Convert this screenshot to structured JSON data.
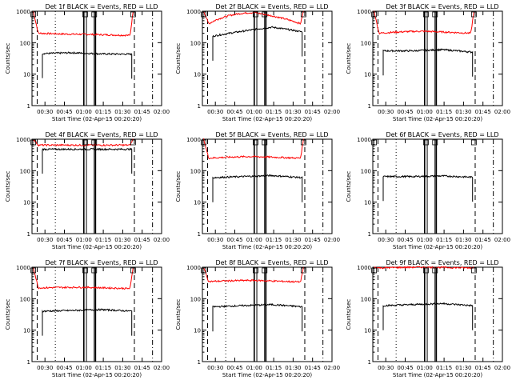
{
  "chart_data": [
    {
      "type": "line",
      "title": "Det 1f BLACK = Events, RED = LLD",
      "xlabel": "Start Time (02-Apr-15 00:20:20)",
      "ylabel": "Counts/sec",
      "yscale": "log",
      "ylim": [
        1,
        1000
      ],
      "xlim": [
        "00:20",
        "02:00"
      ],
      "series": [
        {
          "color": "#ff0000",
          "level": [
            1000,
            200,
            185,
            170
          ],
          "start": "00:21",
          "end": "01:38"
        },
        {
          "color": "#000000",
          "level": [
            45,
            48,
            44,
            43
          ],
          "start": "00:28",
          "end": "01:37"
        }
      ]
    },
    {
      "type": "line",
      "title": "Det 2f BLACK = Events, RED = LLD",
      "xlabel": "Start Time (02-Apr-15 00:20:20)",
      "ylabel": "Counts/sec",
      "yscale": "log",
      "ylim": [
        1,
        1000
      ],
      "xlim": [
        "00:20",
        "02:00"
      ],
      "series": [
        {
          "color": "#ff0000",
          "level": [
            1000,
            400,
            900,
            400
          ],
          "start": "00:21",
          "end": "01:38"
        },
        {
          "color": "#000000",
          "level": [
            160,
            230,
            310,
            220
          ],
          "start": "00:28",
          "end": "01:37"
        }
      ]
    },
    {
      "type": "line",
      "title": "Det 3f BLACK = Events, RED = LLD",
      "xlabel": "Start Time (02-Apr-15 00:20:20)",
      "ylabel": "Counts/sec",
      "yscale": "log",
      "ylim": [
        1,
        1000
      ],
      "xlim": [
        "00:20",
        "02:00"
      ],
      "series": [
        {
          "color": "#ff0000",
          "level": [
            1000,
            200,
            230,
            200
          ],
          "start": "00:21",
          "end": "01:38"
        },
        {
          "color": "#000000",
          "level": [
            55,
            55,
            60,
            50
          ],
          "start": "00:28",
          "end": "01:37"
        }
      ]
    },
    {
      "type": "line",
      "title": "Det 4f BLACK = Events, RED = LLD",
      "xlabel": "Start Time (02-Apr-15 00:20:20)",
      "ylabel": "Counts/sec",
      "yscale": "log",
      "ylim": [
        1,
        1000
      ],
      "xlim": [
        "00:20",
        "02:00"
      ],
      "series": [
        {
          "color": "#ff0000",
          "level": [
            1000,
            650,
            650,
            650
          ],
          "start": "00:21",
          "end": "01:38"
        },
        {
          "color": "#000000",
          "level": [
            480,
            480,
            480,
            480
          ],
          "start": "00:28",
          "end": "01:37"
        }
      ]
    },
    {
      "type": "line",
      "title": "Det 5f BLACK = Events, RED = LLD",
      "xlabel": "Start Time (02-Apr-15 00:20:20)",
      "ylabel": "Counts/sec",
      "yscale": "log",
      "ylim": [
        1,
        1000
      ],
      "xlim": [
        "00:20",
        "02:00"
      ],
      "series": [
        {
          "color": "#ff0000",
          "level": [
            1000,
            250,
            280,
            250
          ],
          "start": "00:21",
          "end": "01:38"
        },
        {
          "color": "#000000",
          "level": [
            60,
            65,
            70,
            60
          ],
          "start": "00:28",
          "end": "01:37"
        }
      ]
    },
    {
      "type": "line",
      "title": "Det 6f BLACK = Events, RED = LLD",
      "xlabel": "Start Time (02-Apr-15 00:20:20)",
      "ylabel": "Counts/sec",
      "yscale": "log",
      "ylim": [
        1,
        1000
      ],
      "xlim": [
        "00:20",
        "02:00"
      ],
      "series": [
        {
          "color": "#000000",
          "level": [
            65,
            65,
            68,
            62
          ],
          "start": "00:28",
          "end": "01:37"
        }
      ]
    },
    {
      "type": "line",
      "title": "Det 7f BLACK = Events, RED = LLD",
      "xlabel": "Start Time (02-Apr-15 00:20:20)",
      "ylabel": "Counts/sec",
      "yscale": "log",
      "ylim": [
        1,
        1000
      ],
      "xlim": [
        "00:20",
        "02:00"
      ],
      "series": [
        {
          "color": "#ff0000",
          "level": [
            1000,
            220,
            230,
            210
          ],
          "start": "00:21",
          "end": "01:38"
        },
        {
          "color": "#000000",
          "level": [
            40,
            42,
            45,
            40
          ],
          "start": "00:28",
          "end": "01:37"
        }
      ]
    },
    {
      "type": "line",
      "title": "Det 8f BLACK = Events, RED = LLD",
      "xlabel": "Start Time (02-Apr-15 00:20:20)",
      "ylabel": "Counts/sec",
      "yscale": "log",
      "ylim": [
        1,
        1000
      ],
      "xlim": [
        "00:20",
        "02:00"
      ],
      "series": [
        {
          "color": "#ff0000",
          "level": [
            1000,
            350,
            380,
            340
          ],
          "start": "00:21",
          "end": "01:38"
        },
        {
          "color": "#000000",
          "level": [
            55,
            60,
            65,
            55
          ],
          "start": "00:28",
          "end": "01:37"
        }
      ]
    },
    {
      "type": "line",
      "title": "Det 9f BLACK = Events, RED = LLD",
      "xlabel": "Start Time (02-Apr-15 00:20:20)",
      "ylabel": "Counts/sec",
      "yscale": "log",
      "ylim": [
        1,
        1000
      ],
      "xlim": [
        "00:20",
        "02:00"
      ],
      "series": [
        {
          "color": "#ff0000",
          "level": [
            1000,
            950,
            1000,
            950
          ],
          "start": "00:21",
          "end": "01:38"
        },
        {
          "color": "#000000",
          "level": [
            60,
            65,
            70,
            60
          ],
          "start": "00:28",
          "end": "01:37"
        }
      ]
    }
  ],
  "x_ticks": [
    "00:30",
    "00:45",
    "01:00",
    "01:15",
    "01:30",
    "01:45",
    "02:00"
  ],
  "y_ticks": [
    "1",
    "10",
    "100",
    "1000"
  ]
}
